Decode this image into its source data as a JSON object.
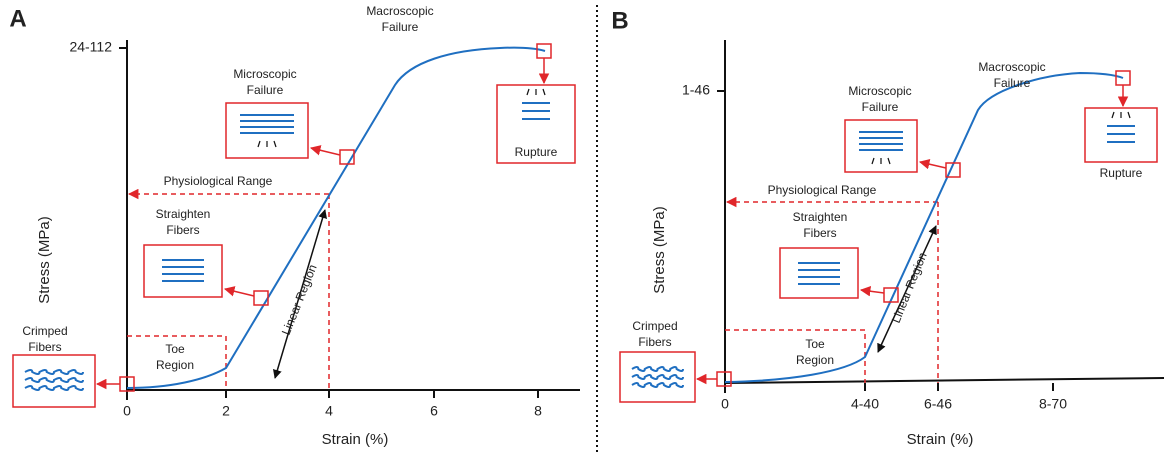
{
  "panels": [
    {
      "letter": "A",
      "y_axis_label": "Stress (MPa)",
      "x_axis_label": "Strain (%)",
      "y_tick": "24-112",
      "x_ticks": [
        "0",
        "2",
        "4",
        "6",
        "8"
      ],
      "macroscopic_failure": [
        "Macroscopic",
        "Failure"
      ],
      "microscopic_failure": [
        "Microscopic",
        "Failure"
      ],
      "physiological_range": "Physiological Range",
      "straighten_fibers": [
        "Straighten",
        "Fibers"
      ],
      "crimped_fibers": [
        "Crimped",
        "Fibers"
      ],
      "toe_region": [
        "Toe",
        "Region"
      ],
      "linear_region": "Linear Region",
      "rupture": "Rupture"
    },
    {
      "letter": "B",
      "y_axis_label": "Stress (MPa)",
      "x_axis_label": "Strain (%)",
      "y_tick": "1-46",
      "x_ticks": [
        "0",
        "4-40",
        "6-46",
        "8-70"
      ],
      "macroscopic_failure": [
        "Macroscopic",
        "Failure"
      ],
      "microscopic_failure": [
        "Microscopic",
        "Failure"
      ],
      "physiological_range": "Physiological Range",
      "straighten_fibers": [
        "Straighten",
        "Fibers"
      ],
      "crimped_fibers": [
        "Crimped",
        "Fibers"
      ],
      "toe_region": [
        "Toe",
        "Region"
      ],
      "linear_region": "Linear Region",
      "rupture": "Rupture"
    }
  ]
}
